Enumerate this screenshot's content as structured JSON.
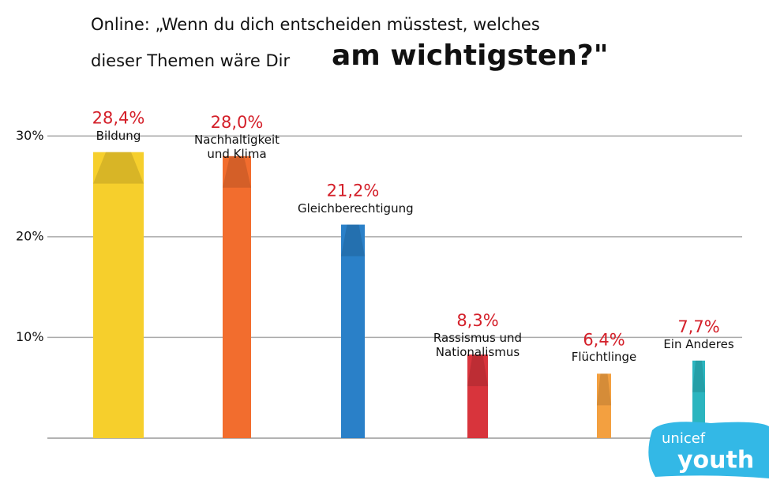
{
  "title": "Online: „Wenn du dich entscheiden müsstest, welches",
  "title_line2": "dieser Themen wäre Dir",
  "title_emphasis": "am wichtigsten?\"",
  "logo": {
    "brand": "unicef",
    "program": "youth"
  },
  "chart_data": {
    "type": "bar",
    "categories": [
      "Bildung",
      "Nachhaltigkeit und Klima",
      "Gleichberechtigung",
      "Rassismus und Nationalismus",
      "Flüchtlinge",
      "Ein Anderes"
    ],
    "values": [
      28.4,
      28.0,
      21.2,
      8.3,
      6.4,
      7.7
    ],
    "value_labels": [
      "28,4%",
      "28,0%",
      "21,2%",
      "8,3%",
      "6,4%",
      "7,7%"
    ],
    "colors": [
      "#f6cf2c",
      "#f26d2e",
      "#2a80c8",
      "#d8343c",
      "#f3a040",
      "#2bb5bf"
    ],
    "ylim": [
      0,
      33
    ],
    "yticks": [
      {
        "value": 10,
        "label": "10%"
      },
      {
        "value": 20,
        "label": "20%"
      },
      {
        "value": 30,
        "label": "30%"
      }
    ],
    "grid": true
  }
}
